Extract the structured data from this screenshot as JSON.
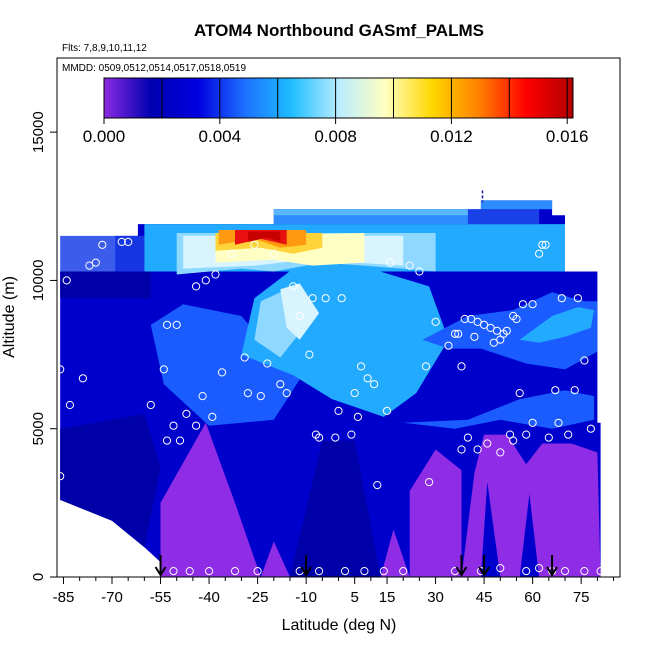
{
  "chart_data": {
    "type": "heatmap",
    "title": "ATOM4 Northbound GASmf_PALMS",
    "flights_label": "Flts: 7,8,9,10,11,12",
    "dates_label": "MMDD: 0509,0512,0514,0517,0518,0519",
    "xlabel": "Latitude (deg N)",
    "ylabel": "Altitude (m)",
    "xlim": [
      -87,
      87
    ],
    "ylim": [
      0,
      17500
    ],
    "x_ticks": [
      -85,
      -70,
      -55,
      -40,
      -25,
      -10,
      5,
      15,
      30,
      45,
      60,
      75
    ],
    "x_ticks_minor_step": 5,
    "y_ticks": [
      0,
      5000,
      10000,
      15000
    ],
    "colorbar": {
      "min": 0.0,
      "max": 0.0162,
      "ticks": [
        "0.000",
        "0.004",
        "0.008",
        "0.012",
        "0.016"
      ],
      "tick_values": [
        0.0,
        0.004,
        0.008,
        0.012,
        0.016
      ],
      "dividers": [
        0.0,
        0.002,
        0.004,
        0.006,
        0.008,
        0.01,
        0.012,
        0.014,
        0.016
      ],
      "colors": [
        "#8b2be2",
        "#0000b0",
        "#0000e0",
        "#1e70ff",
        "#1ebeff",
        "#b9ecff",
        "#ffffc0",
        "#ffd700",
        "#ff8000",
        "#ff0000",
        "#b00000"
      ]
    },
    "flight_profiles_lat": [
      -55,
      -10,
      38,
      45,
      66
    ],
    "observations": [
      {
        "lat": -86,
        "alt": 7000
      },
      {
        "lat": -86,
        "alt": 3400
      },
      {
        "lat": -84,
        "alt": 10000
      },
      {
        "lat": -83,
        "alt": 5800
      },
      {
        "lat": -79,
        "alt": 6700
      },
      {
        "lat": -77,
        "alt": 10500
      },
      {
        "lat": -75,
        "alt": 10600
      },
      {
        "lat": -73,
        "alt": 11200
      },
      {
        "lat": -67,
        "alt": 11300
      },
      {
        "lat": -65,
        "alt": 11300
      },
      {
        "lat": -58,
        "alt": 5800
      },
      {
        "lat": -54,
        "alt": 7000
      },
      {
        "lat": -53,
        "alt": 8500
      },
      {
        "lat": -53,
        "alt": 4600
      },
      {
        "lat": -51,
        "alt": 5100
      },
      {
        "lat": -50,
        "alt": 8500
      },
      {
        "lat": -49,
        "alt": 4600
      },
      {
        "lat": -47,
        "alt": 5500
      },
      {
        "lat": -44,
        "alt": 5100
      },
      {
        "lat": -44,
        "alt": 9800
      },
      {
        "lat": -42,
        "alt": 6100
      },
      {
        "lat": -41,
        "alt": 10000
      },
      {
        "lat": -39,
        "alt": 5400
      },
      {
        "lat": -38,
        "alt": 10200
      },
      {
        "lat": -36,
        "alt": 6900
      },
      {
        "lat": -33,
        "alt": 10900
      },
      {
        "lat": -29,
        "alt": 7400
      },
      {
        "lat": -28,
        "alt": 6200
      },
      {
        "lat": -26,
        "alt": 11200
      },
      {
        "lat": -24,
        "alt": 6100
      },
      {
        "lat": -22,
        "alt": 7200
      },
      {
        "lat": -20,
        "alt": 10900
      },
      {
        "lat": -18,
        "alt": 6500
      },
      {
        "lat": -16,
        "alt": 6200
      },
      {
        "lat": -14,
        "alt": 9800
      },
      {
        "lat": -12,
        "alt": 8800
      },
      {
        "lat": -9,
        "alt": 7500
      },
      {
        "lat": -8,
        "alt": 9400
      },
      {
        "lat": -7,
        "alt": 4800
      },
      {
        "lat": -6,
        "alt": 4700
      },
      {
        "lat": -4,
        "alt": 9400
      },
      {
        "lat": -1,
        "alt": 4700
      },
      {
        "lat": 0,
        "alt": 5600
      },
      {
        "lat": 1,
        "alt": 9400
      },
      {
        "lat": 4,
        "alt": 4800
      },
      {
        "lat": 5,
        "alt": 6200
      },
      {
        "lat": 6,
        "alt": 5400
      },
      {
        "lat": 7,
        "alt": 7100
      },
      {
        "lat": 9,
        "alt": 6700
      },
      {
        "lat": 11,
        "alt": 6500
      },
      {
        "lat": 12,
        "alt": 3100
      },
      {
        "lat": 15,
        "alt": 5600
      },
      {
        "lat": 16,
        "alt": 10600
      },
      {
        "lat": 22,
        "alt": 10500
      },
      {
        "lat": 25,
        "alt": 10300
      },
      {
        "lat": 27,
        "alt": 7100
      },
      {
        "lat": 28,
        "alt": 3200
      },
      {
        "lat": 30,
        "alt": 8600
      },
      {
        "lat": 34,
        "alt": 7800
      },
      {
        "lat": 36,
        "alt": 8200
      },
      {
        "lat": 37,
        "alt": 8200
      },
      {
        "lat": 38,
        "alt": 7100
      },
      {
        "lat": 38,
        "alt": 4300
      },
      {
        "lat": 39,
        "alt": 8700
      },
      {
        "lat": 40,
        "alt": 4700
      },
      {
        "lat": 41,
        "alt": 8700
      },
      {
        "lat": 42,
        "alt": 8100
      },
      {
        "lat": 43,
        "alt": 4300
      },
      {
        "lat": 43,
        "alt": 8600
      },
      {
        "lat": 45,
        "alt": 8500
      },
      {
        "lat": 46,
        "alt": 4500
      },
      {
        "lat": 47,
        "alt": 8400
      },
      {
        "lat": 48,
        "alt": 7900
      },
      {
        "lat": 49,
        "alt": 8300
      },
      {
        "lat": 50,
        "alt": 8000
      },
      {
        "lat": 50,
        "alt": 4200
      },
      {
        "lat": 51,
        "alt": 8200
      },
      {
        "lat": 52,
        "alt": 8300
      },
      {
        "lat": 53,
        "alt": 4800
      },
      {
        "lat": 54,
        "alt": 4600
      },
      {
        "lat": 54,
        "alt": 8800
      },
      {
        "lat": 55,
        "alt": 8700
      },
      {
        "lat": 56,
        "alt": 6200
      },
      {
        "lat": 57,
        "alt": 9200
      },
      {
        "lat": 58,
        "alt": 4800
      },
      {
        "lat": 60,
        "alt": 5200
      },
      {
        "lat": 60,
        "alt": 9200
      },
      {
        "lat": 62,
        "alt": 10900
      },
      {
        "lat": 63,
        "alt": 11200
      },
      {
        "lat": 64,
        "alt": 11200
      },
      {
        "lat": 65,
        "alt": 4700
      },
      {
        "lat": 67,
        "alt": 6300
      },
      {
        "lat": 68,
        "alt": 5200
      },
      {
        "lat": 69,
        "alt": 9400
      },
      {
        "lat": 71,
        "alt": 4800
      },
      {
        "lat": 73,
        "alt": 6300
      },
      {
        "lat": 74,
        "alt": 9400
      },
      {
        "lat": 76,
        "alt": 7300
      },
      {
        "lat": 78,
        "alt": 5000
      },
      {
        "lat": -51,
        "alt": 200
      },
      {
        "lat": -46,
        "alt": 200
      },
      {
        "lat": -40,
        "alt": 200
      },
      {
        "lat": -32,
        "alt": 200
      },
      {
        "lat": -25,
        "alt": 200
      },
      {
        "lat": -12,
        "alt": 200
      },
      {
        "lat": -6,
        "alt": 200
      },
      {
        "lat": 2,
        "alt": 200
      },
      {
        "lat": 8,
        "alt": 200
      },
      {
        "lat": 14,
        "alt": 200
      },
      {
        "lat": 20,
        "alt": 200
      },
      {
        "lat": 36,
        "alt": 200
      },
      {
        "lat": 44,
        "alt": 200
      },
      {
        "lat": 50,
        "alt": 300
      },
      {
        "lat": 58,
        "alt": 200
      },
      {
        "lat": 62,
        "alt": 300
      },
      {
        "lat": 66,
        "alt": 200
      },
      {
        "lat": 70,
        "alt": 200
      },
      {
        "lat": 76,
        "alt": 200
      },
      {
        "lat": 81,
        "alt": 200
      }
    ]
  }
}
